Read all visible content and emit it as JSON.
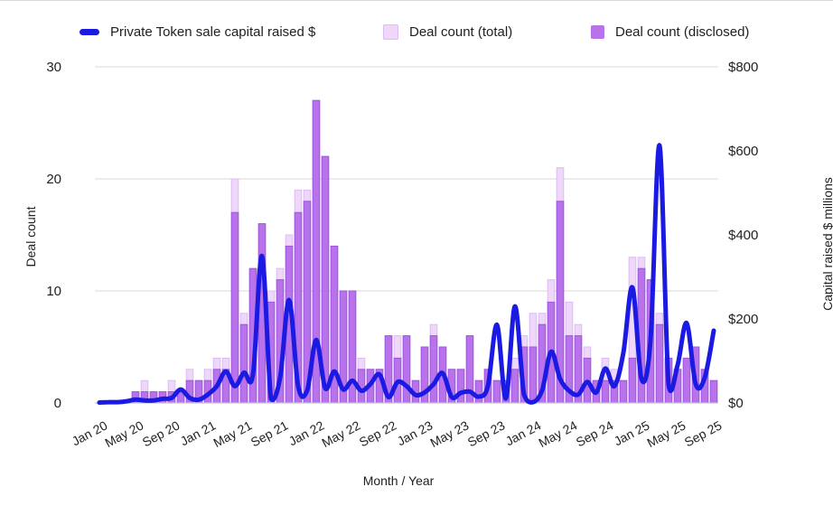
{
  "legend": {
    "line_series_label": "Private Token sale capital raised $",
    "total_series_label": "Deal count (total)",
    "disclosed_series_label": "Deal count (disclosed)"
  },
  "colors": {
    "line": "#1b1ae3",
    "bar_total_fill": "#eed7f9",
    "bar_total_stroke": "#dcbcf3",
    "bar_disclosed_fill": "#b873ea",
    "bar_disclosed_stroke": "#9d55de",
    "grid": "#d9d9d9",
    "tick_text": "#1f1f1f"
  },
  "chart_data": {
    "type": "combo bar+line",
    "title": "",
    "xlabel": "Month / Year",
    "left_axis": {
      "title": "Deal count",
      "ticks": [
        0,
        10,
        20,
        30
      ],
      "range": [
        0,
        30
      ]
    },
    "right_axis": {
      "title": "Capital raised $ millions",
      "tick_labels": [
        "$0",
        "$200",
        "$400",
        "$600",
        "$800"
      ],
      "tick_values": [
        0,
        200,
        400,
        600,
        800
      ],
      "range": [
        0,
        800
      ]
    },
    "grid": true,
    "legend_position": "top",
    "categories": [
      "Jan 20",
      "Feb 20",
      "Mar 20",
      "Apr 20",
      "May 20",
      "Jun 20",
      "Jul 20",
      "Aug 20",
      "Sep 20",
      "Oct 20",
      "Nov 20",
      "Dec 20",
      "Jan 21",
      "Feb 21",
      "Mar 21",
      "Apr 21",
      "May 21",
      "Jun 21",
      "Jul 21",
      "Aug 21",
      "Sep 21",
      "Oct 21",
      "Nov 21",
      "Dec 21",
      "Jan 22",
      "Feb 22",
      "Mar 22",
      "Apr 22",
      "May 22",
      "Jun 22",
      "Jul 22",
      "Aug 22",
      "Sep 22",
      "Oct 22",
      "Nov 22",
      "Dec 22",
      "Jan 23",
      "Feb 23",
      "Mar 23",
      "Apr 23",
      "May 23",
      "Jun 23",
      "Jul 23",
      "Aug 23",
      "Sep 23",
      "Oct 23",
      "Nov 23",
      "Dec 23",
      "Jan 24",
      "Feb 24",
      "Mar 24",
      "Apr 24",
      "May 24",
      "Jun 24",
      "Jul 24",
      "Aug 24",
      "Sep 24",
      "Oct 24",
      "Nov 24",
      "Dec 24",
      "Jan 25",
      "Feb 25",
      "Mar 25",
      "Apr 25",
      "May 25",
      "Jun 25",
      "Jul 25",
      "Aug 25",
      "Sep 25"
    ],
    "x_tick_label_every": 4,
    "series": [
      {
        "name": "Deal count (total)",
        "type": "bar",
        "axis": "left",
        "values": [
          0,
          0,
          0,
          0,
          1,
          2,
          1,
          1,
          2,
          1,
          3,
          2,
          3,
          4,
          4,
          20,
          8,
          12,
          16,
          10,
          12,
          15,
          19,
          19,
          27,
          22,
          14,
          10,
          10,
          4,
          3,
          3,
          6,
          6,
          6,
          2,
          5,
          7,
          5,
          3,
          3,
          6,
          2,
          3,
          2,
          2,
          4,
          6,
          8,
          8,
          11,
          21,
          9,
          7,
          5,
          2,
          4,
          3,
          2,
          13,
          13,
          11,
          8,
          4,
          3,
          4,
          5,
          3,
          2
        ]
      },
      {
        "name": "Deal count (disclosed)",
        "type": "bar",
        "axis": "left",
        "values": [
          0,
          0,
          0,
          0,
          1,
          1,
          1,
          1,
          1,
          1,
          2,
          2,
          2,
          3,
          3,
          17,
          7,
          12,
          16,
          9,
          11,
          14,
          17,
          18,
          27,
          22,
          14,
          10,
          10,
          3,
          3,
          3,
          6,
          4,
          6,
          2,
          5,
          6,
          5,
          3,
          3,
          6,
          2,
          3,
          2,
          2,
          3,
          5,
          5,
          7,
          9,
          18,
          6,
          6,
          4,
          2,
          2,
          2,
          2,
          4,
          12,
          11,
          7,
          4,
          3,
          4,
          5,
          3,
          2
        ]
      },
      {
        "name": "Private Token sale capital raised $",
        "type": "line",
        "axis": "right",
        "values": [
          1,
          2,
          2,
          4,
          8,
          6,
          6,
          10,
          12,
          32,
          12,
          8,
          20,
          40,
          75,
          40,
          72,
          68,
          350,
          10,
          60,
          245,
          40,
          30,
          150,
          35,
          75,
          32,
          53,
          29,
          45,
          68,
          14,
          50,
          40,
          19,
          25,
          45,
          71,
          14,
          24,
          27,
          15,
          40,
          186,
          11,
          230,
          20,
          2,
          30,
          122,
          57,
          29,
          20,
          50,
          25,
          82,
          40,
          120,
          275,
          57,
          150,
          613,
          43,
          90,
          190,
          45,
          60,
          172
        ]
      }
    ]
  }
}
